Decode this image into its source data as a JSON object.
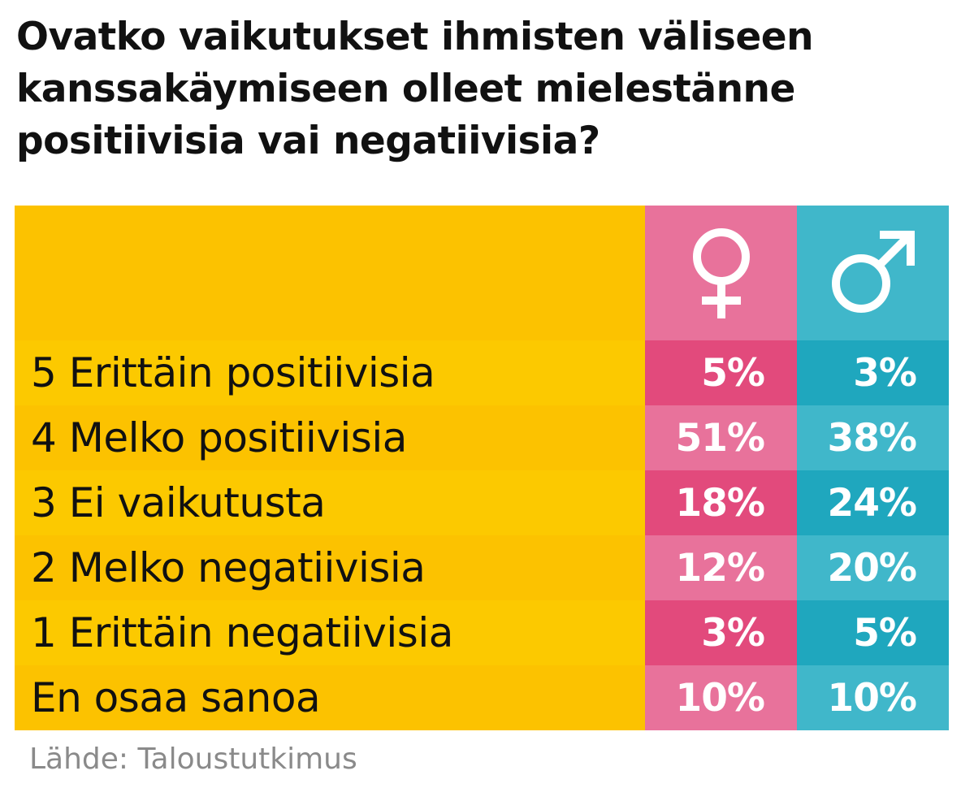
{
  "chart_data": {
    "type": "table",
    "title": "Ovatko vaikutukset ihmisten väliseen kanssakäymiseen olleet mielestänne positiivisia vai negatiivisia?",
    "columns": [
      {
        "icon": "female-symbol-icon",
        "color": "#E8729B"
      },
      {
        "icon": "male-symbol-icon",
        "color": "#40B7CA"
      }
    ],
    "rows": [
      {
        "label": "5 Erittäin positiivisia",
        "female": "5%",
        "male": "3%"
      },
      {
        "label": "4 Melko positiivisia",
        "female": "51%",
        "male": "38%"
      },
      {
        "label": "3 Ei vaikutusta",
        "female": "18%",
        "male": "24%"
      },
      {
        "label": "2 Melko negatiivisia",
        "female": "12%",
        "male": "20%"
      },
      {
        "label": "1 Erittäin negatiivisia",
        "female": "3%",
        "male": "5%"
      },
      {
        "label": "En osaa sanoa",
        "female": "10%",
        "male": "10%"
      }
    ],
    "source": "Lähde: Taloustutkimus"
  },
  "colors": {
    "label_bg": "#FCC200",
    "label_bg_alt": "#FCC900",
    "female": "#E8729B",
    "female_dark": "#E24A7C",
    "male": "#40B7CA",
    "male_dark": "#1FA7BE"
  }
}
